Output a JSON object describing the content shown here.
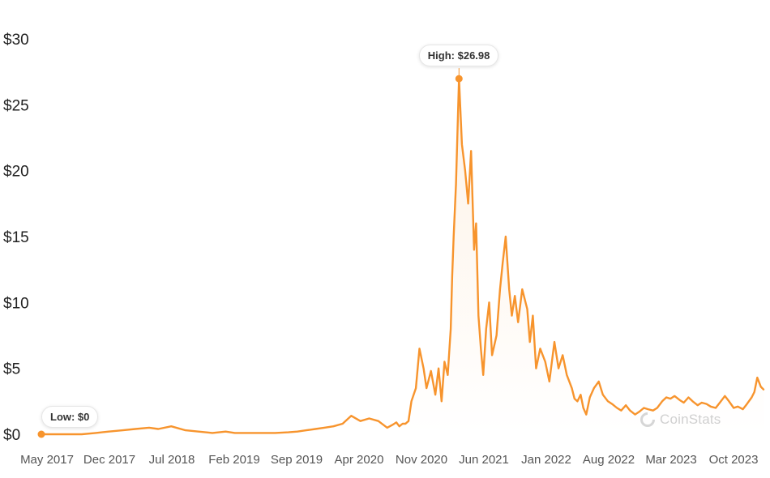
{
  "chart_data": {
    "type": "line",
    "y_unit_prefix": "$",
    "ylim": [
      0,
      30
    ],
    "yticks": [
      "$0",
      "$5",
      "$10",
      "$15",
      "$20",
      "$25",
      "$30"
    ],
    "xticks": [
      "May 2017",
      "Dec 2017",
      "Jul 2018",
      "Feb 2019",
      "Sep 2019",
      "Apr 2020",
      "Nov 2020",
      "Jun 2021",
      "Jan 2022",
      "Aug 2022",
      "Mar 2023",
      "Oct 2023"
    ],
    "grid": false,
    "legend": "none",
    "color": "#f7942d",
    "annotations": {
      "high": "High: $26.98",
      "low": "Low: $0"
    },
    "watermark": "CoinStats",
    "series": [
      {
        "x": [
          "2017-05-01",
          "2017-06-15",
          "2017-08-01",
          "2017-09-15",
          "2017-11-01",
          "2017-12-15",
          "2018-02-01",
          "2018-03-15",
          "2018-05-01",
          "2018-06-01",
          "2018-07-15",
          "2018-09-01",
          "2018-10-15",
          "2018-12-01",
          "2019-01-15",
          "2019-02-15",
          "2019-04-01",
          "2019-05-15",
          "2019-07-01",
          "2019-08-15",
          "2019-09-15",
          "2019-10-15",
          "2019-11-15",
          "2019-12-15",
          "2020-01-15",
          "2020-02-15",
          "2020-03-15",
          "2020-04-15",
          "2020-05-15",
          "2020-06-15",
          "2020-07-15",
          "2020-08-01",
          "2020-08-15",
          "2020-08-25",
          "2020-09-05",
          "2020-09-15",
          "2020-09-25",
          "2020-10-05",
          "2020-10-20",
          "2020-11-01",
          "2020-11-15",
          "2020-11-25",
          "2020-12-10",
          "2020-12-25",
          "2021-01-05",
          "2021-01-15",
          "2021-01-25",
          "2021-02-05",
          "2021-02-15",
          "2021-02-20",
          "2021-02-25",
          "2021-03-05",
          "2021-03-15",
          "2021-03-25",
          "2021-04-05",
          "2021-04-15",
          "2021-04-25",
          "2021-05-05",
          "2021-05-12",
          "2021-05-20",
          "2021-05-28",
          "2021-06-05",
          "2021-06-15",
          "2021-06-25",
          "2021-07-05",
          "2021-07-20",
          "2021-08-01",
          "2021-08-10",
          "2021-08-20",
          "2021-09-01",
          "2021-09-10",
          "2021-09-20",
          "2021-10-01",
          "2021-10-15",
          "2021-11-01",
          "2021-11-10",
          "2021-11-20",
          "2021-12-01",
          "2021-12-15",
          "2022-01-01",
          "2022-01-15",
          "2022-02-01",
          "2022-02-15",
          "2022-03-01",
          "2022-03-15",
          "2022-04-01",
          "2022-04-10",
          "2022-04-20",
          "2022-05-01",
          "2022-05-10",
          "2022-05-20",
          "2022-06-01",
          "2022-06-15",
          "2022-07-01",
          "2022-07-15",
          "2022-08-01",
          "2022-08-15",
          "2022-09-01",
          "2022-09-15",
          "2022-10-01",
          "2022-10-15",
          "2022-11-01",
          "2022-11-15",
          "2022-12-01",
          "2022-12-15",
          "2023-01-01",
          "2023-01-15",
          "2023-02-01",
          "2023-02-15",
          "2023-03-01",
          "2023-03-15",
          "2023-04-01",
          "2023-04-15",
          "2023-05-01",
          "2023-05-15",
          "2023-06-01",
          "2023-06-15",
          "2023-07-01",
          "2023-07-15",
          "2023-08-01",
          "2023-08-15",
          "2023-09-01",
          "2023-09-15",
          "2023-10-01",
          "2023-10-15",
          "2023-11-01",
          "2023-11-15",
          "2023-12-01",
          "2023-12-10",
          "2023-12-20",
          "2024-01-01",
          "2024-01-10"
        ],
        "y": [
          0,
          0,
          0,
          0,
          0.1,
          0.2,
          0.3,
          0.4,
          0.5,
          0.4,
          0.6,
          0.3,
          0.2,
          0.1,
          0.2,
          0.1,
          0.1,
          0.1,
          0.1,
          0.15,
          0.2,
          0.3,
          0.4,
          0.5,
          0.6,
          0.8,
          1.4,
          1.0,
          1.2,
          1.0,
          0.5,
          0.7,
          0.9,
          0.6,
          0.8,
          0.8,
          1.0,
          2.5,
          3.5,
          6.5,
          5.0,
          3.5,
          4.8,
          3.0,
          5.0,
          2.5,
          5.5,
          4.5,
          8.0,
          12.0,
          15.0,
          19.0,
          26.98,
          22.0,
          20.0,
          17.5,
          21.5,
          14.0,
          16.0,
          9.0,
          6.5,
          4.5,
          8.0,
          10.0,
          6.0,
          7.5,
          11.0,
          13.0,
          15.0,
          11.0,
          9.0,
          10.5,
          8.5,
          11.0,
          9.5,
          7.0,
          9.0,
          5.0,
          6.5,
          5.5,
          4.0,
          7.0,
          5.0,
          6.0,
          4.5,
          3.5,
          2.7,
          2.5,
          3.0,
          2.0,
          1.5,
          2.8,
          3.5,
          4.0,
          3.0,
          2.5,
          2.3,
          2.0,
          1.8,
          2.2,
          1.8,
          1.5,
          1.7,
          2.0,
          1.9,
          1.8,
          2.0,
          2.5,
          2.8,
          2.7,
          2.9,
          2.6,
          2.4,
          2.8,
          2.5,
          2.2,
          2.4,
          2.3,
          2.1,
          2.0,
          2.4,
          2.9,
          2.5,
          2.0,
          2.1,
          1.9,
          2.3,
          2.8,
          3.2,
          4.3,
          3.6,
          3.4
        ]
      }
    ]
  }
}
